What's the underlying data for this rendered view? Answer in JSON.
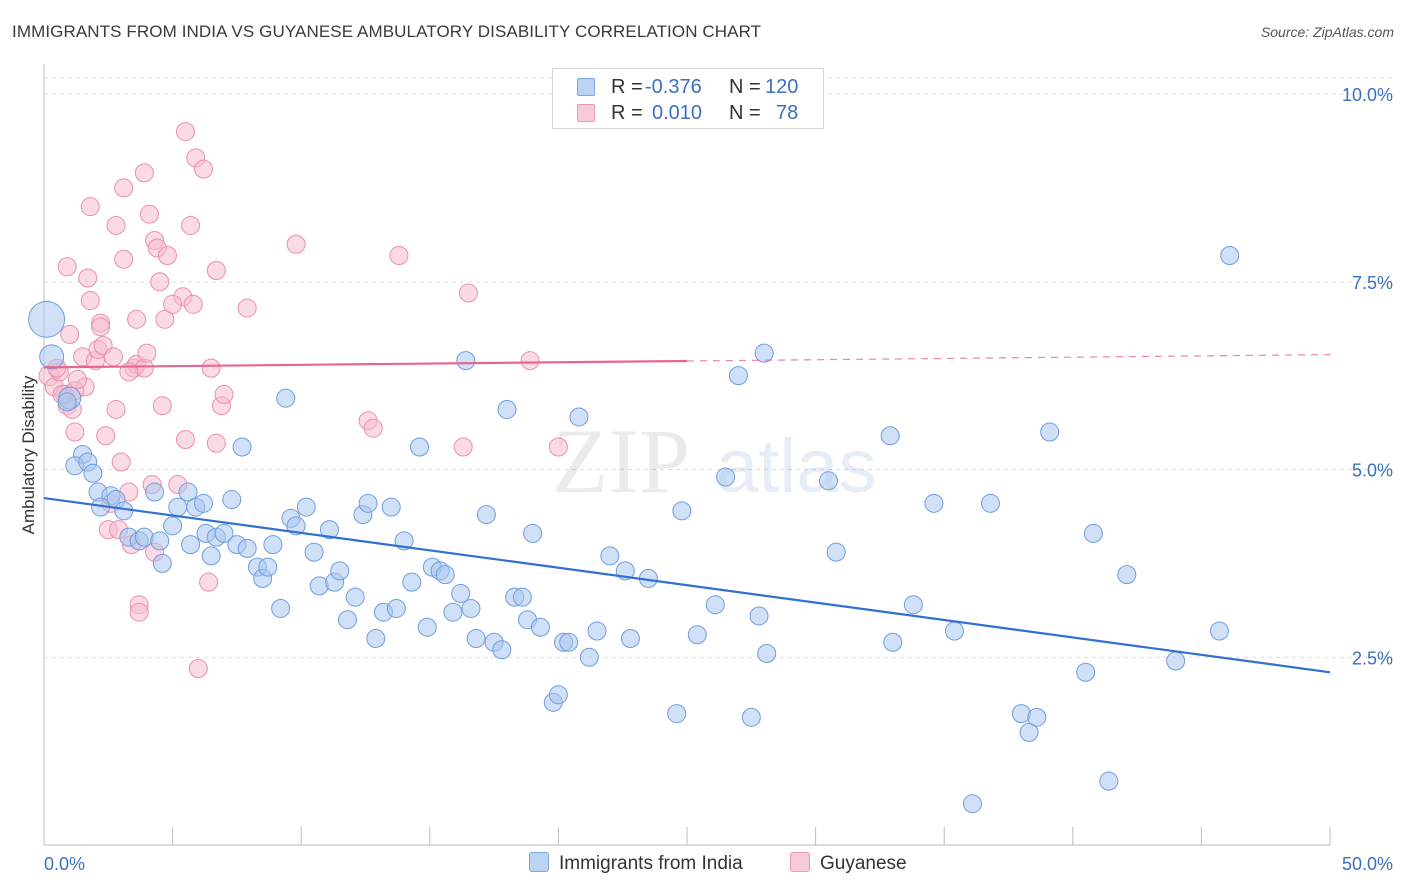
{
  "header": {
    "title": "IMMIGRANTS FROM INDIA VS GUYANESE AMBULATORY DISABILITY CORRELATION CHART",
    "source": "Source: ZipAtlas.com"
  },
  "legend": {
    "rows": [
      {
        "r_label": "R =",
        "r_value": "-0.376",
        "n_label": "N =",
        "n_value": "120"
      },
      {
        "r_label": "R =",
        "r_value": "0.010",
        "n_label": "N =",
        "n_value": "78"
      }
    ]
  },
  "bottom_legend": {
    "items": [
      {
        "label": "Immigrants from India"
      },
      {
        "label": "Guyanese"
      }
    ]
  },
  "watermark": {
    "zip": "ZIP",
    "atlas": "atlas"
  },
  "colors": {
    "blue_fill": "#a9c6ef",
    "blue_stroke": "#6f9ddf",
    "blue_line": "#3270d0",
    "pink_fill": "#f5bcd0",
    "pink_stroke": "#ea8fb0",
    "pink_line": "#e7688e",
    "axis_text": "#3b6fc0",
    "grid": "#dcdcdc"
  },
  "chart_data": {
    "type": "scatter",
    "ylabel": "Ambulatory Disability",
    "xlabel": "",
    "xlim": [
      0,
      50
    ],
    "ylim": [
      0,
      10.4
    ],
    "x_tick_labels": [
      "0.0%",
      "50.0%"
    ],
    "y_ticks": [
      2.5,
      5.0,
      7.5,
      10.0
    ],
    "y_tick_labels": [
      "2.5%",
      "5.0%",
      "7.5%",
      "10.0%"
    ],
    "grid": "horizontal dashed",
    "series": [
      {
        "name": "Immigrants from India",
        "trend": {
          "x0": 0,
          "y0": 4.62,
          "x1": 50,
          "y1": 2.3,
          "solid_until": 50
        },
        "points": [
          [
            0.1,
            7.0,
            18
          ],
          [
            0.3,
            6.5,
            12
          ],
          [
            1.0,
            5.95,
            11
          ],
          [
            0.9,
            5.9,
            9
          ],
          [
            1.5,
            5.2,
            9
          ],
          [
            1.2,
            5.05,
            9
          ],
          [
            1.7,
            5.1,
            9
          ],
          [
            1.9,
            4.95,
            9
          ],
          [
            2.1,
            4.7,
            9
          ],
          [
            2.6,
            4.65,
            9
          ],
          [
            2.8,
            4.6,
            9
          ],
          [
            2.2,
            4.5,
            9
          ],
          [
            3.1,
            4.45,
            9
          ],
          [
            3.3,
            4.1,
            9
          ],
          [
            3.7,
            4.05,
            9
          ],
          [
            3.9,
            4.1,
            9
          ],
          [
            4.3,
            4.7,
            9
          ],
          [
            4.5,
            4.05,
            9
          ],
          [
            4.6,
            3.75,
            9
          ],
          [
            5.0,
            4.25,
            9
          ],
          [
            5.2,
            4.5,
            9
          ],
          [
            5.6,
            4.7,
            9
          ],
          [
            5.7,
            4.0,
            9
          ],
          [
            5.9,
            4.5,
            9
          ],
          [
            6.2,
            4.55,
            9
          ],
          [
            6.3,
            4.15,
            9
          ],
          [
            6.5,
            3.85,
            9
          ],
          [
            6.7,
            4.1,
            9
          ],
          [
            7.0,
            4.15,
            9
          ],
          [
            7.3,
            4.6,
            9
          ],
          [
            7.5,
            4.0,
            9
          ],
          [
            7.7,
            5.3,
            9
          ],
          [
            7.9,
            3.95,
            9
          ],
          [
            8.3,
            3.7,
            9
          ],
          [
            8.5,
            3.55,
            9
          ],
          [
            8.7,
            3.7,
            9
          ],
          [
            8.9,
            4.0,
            9
          ],
          [
            9.2,
            3.15,
            9
          ],
          [
            9.4,
            5.95,
            9
          ],
          [
            9.6,
            4.35,
            9
          ],
          [
            9.8,
            4.25,
            9
          ],
          [
            10.2,
            4.5,
            9
          ],
          [
            10.5,
            3.9,
            9
          ],
          [
            10.7,
            3.45,
            9
          ],
          [
            11.1,
            4.2,
            9
          ],
          [
            11.3,
            3.5,
            9
          ],
          [
            11.5,
            3.65,
            9
          ],
          [
            11.8,
            3.0,
            9
          ],
          [
            12.1,
            3.3,
            9
          ],
          [
            12.4,
            4.4,
            9
          ],
          [
            12.6,
            4.55,
            9
          ],
          [
            12.9,
            2.75,
            9
          ],
          [
            13.2,
            3.1,
            9
          ],
          [
            13.5,
            4.5,
            9
          ],
          [
            13.7,
            3.15,
            9
          ],
          [
            14.0,
            4.05,
            9
          ],
          [
            14.3,
            3.5,
            9
          ],
          [
            14.6,
            5.3,
            9
          ],
          [
            14.9,
            2.9,
            9
          ],
          [
            15.1,
            3.7,
            9
          ],
          [
            15.4,
            3.65,
            9
          ],
          [
            15.6,
            3.6,
            9
          ],
          [
            15.9,
            3.1,
            9
          ],
          [
            16.2,
            3.35,
            9
          ],
          [
            16.4,
            6.45,
            9
          ],
          [
            16.6,
            3.15,
            9
          ],
          [
            16.8,
            2.75,
            9
          ],
          [
            17.2,
            4.4,
            9
          ],
          [
            17.5,
            2.7,
            9
          ],
          [
            17.8,
            2.6,
            9
          ],
          [
            18.0,
            5.8,
            9
          ],
          [
            18.3,
            3.3,
            9
          ],
          [
            18.6,
            3.3,
            9
          ],
          [
            18.8,
            3.0,
            9
          ],
          [
            19.0,
            4.15,
            9
          ],
          [
            19.3,
            2.9,
            9
          ],
          [
            19.8,
            1.9,
            9
          ],
          [
            20.0,
            2.0,
            9
          ],
          [
            20.2,
            2.7,
            9
          ],
          [
            20.4,
            2.7,
            9
          ],
          [
            20.8,
            5.7,
            9
          ],
          [
            21.2,
            2.5,
            9
          ],
          [
            21.5,
            2.85,
            9
          ],
          [
            22.0,
            3.85,
            9
          ],
          [
            22.6,
            3.65,
            9
          ],
          [
            22.8,
            2.75,
            9
          ],
          [
            23.5,
            3.55,
            9
          ],
          [
            24.6,
            1.75,
            9
          ],
          [
            24.8,
            4.45,
            9
          ],
          [
            25.4,
            2.8,
            9
          ],
          [
            26.1,
            3.2,
            9
          ],
          [
            26.5,
            4.9,
            9
          ],
          [
            27.0,
            6.25,
            9
          ],
          [
            27.5,
            1.7,
            9
          ],
          [
            27.8,
            3.05,
            9
          ],
          [
            28.0,
            6.55,
            9
          ],
          [
            28.1,
            2.55,
            9
          ],
          [
            30.5,
            4.85,
            9
          ],
          [
            30.8,
            3.9,
            9
          ],
          [
            33.0,
            2.7,
            9
          ],
          [
            32.9,
            5.45,
            9
          ],
          [
            33.8,
            3.2,
            9
          ],
          [
            34.6,
            4.55,
            9
          ],
          [
            35.4,
            2.85,
            9
          ],
          [
            36.8,
            4.55,
            9
          ],
          [
            36.1,
            0.55,
            9
          ],
          [
            38.0,
            1.75,
            9
          ],
          [
            38.3,
            1.5,
            9
          ],
          [
            38.6,
            1.7,
            9
          ],
          [
            39.1,
            5.5,
            9
          ],
          [
            40.5,
            2.3,
            9
          ],
          [
            40.8,
            4.15,
            9
          ],
          [
            42.1,
            3.6,
            9
          ],
          [
            41.4,
            0.85,
            9
          ],
          [
            45.7,
            2.85,
            9
          ],
          [
            46.1,
            7.85,
            9
          ],
          [
            44.0,
            2.45,
            9
          ]
        ]
      },
      {
        "name": "Guyanese",
        "trend": {
          "x0": 0,
          "y0": 6.36,
          "x1": 50,
          "y1": 6.53,
          "solid_until": 25
        },
        "points": [
          [
            0.2,
            6.25,
            10
          ],
          [
            0.4,
            6.1,
            9
          ],
          [
            0.6,
            6.3,
            9
          ],
          [
            0.8,
            6.0,
            9
          ],
          [
            0.9,
            5.85,
            9
          ],
          [
            1.0,
            6.8,
            9
          ],
          [
            1.1,
            5.8,
            9
          ],
          [
            1.2,
            5.5,
            9
          ],
          [
            0.9,
            7.7,
            9
          ],
          [
            1.5,
            6.5,
            9
          ],
          [
            1.6,
            6.1,
            9
          ],
          [
            1.7,
            7.55,
            9
          ],
          [
            1.8,
            7.25,
            9
          ],
          [
            1.8,
            8.5,
            9
          ],
          [
            2.0,
            6.45,
            9
          ],
          [
            2.1,
            6.6,
            9
          ],
          [
            2.2,
            6.95,
            9
          ],
          [
            2.3,
            6.65,
            9
          ],
          [
            2.4,
            5.45,
            9
          ],
          [
            2.5,
            4.2,
            9
          ],
          [
            2.6,
            4.55,
            9
          ],
          [
            2.8,
            5.8,
            9
          ],
          [
            2.8,
            8.25,
            9
          ],
          [
            2.9,
            4.2,
            9
          ],
          [
            3.0,
            5.1,
            9
          ],
          [
            3.1,
            7.8,
            9
          ],
          [
            3.1,
            8.75,
            9
          ],
          [
            3.3,
            4.7,
            9
          ],
          [
            3.4,
            4.0,
            9
          ],
          [
            3.5,
            6.35,
            9
          ],
          [
            3.6,
            6.4,
            9
          ],
          [
            3.6,
            7.0,
            9
          ],
          [
            3.7,
            3.2,
            9
          ],
          [
            3.7,
            3.1,
            9
          ],
          [
            3.9,
            6.35,
            9
          ],
          [
            3.9,
            8.95,
            9
          ],
          [
            4.0,
            6.55,
            9
          ],
          [
            4.1,
            8.4,
            9
          ],
          [
            4.2,
            4.8,
            9
          ],
          [
            4.3,
            3.9,
            9
          ],
          [
            4.3,
            8.05,
            9
          ],
          [
            4.4,
            7.95,
            9
          ],
          [
            4.5,
            7.5,
            9
          ],
          [
            4.6,
            5.85,
            9
          ],
          [
            4.7,
            7.0,
            9
          ],
          [
            4.8,
            7.85,
            9
          ],
          [
            5.2,
            4.8,
            9
          ],
          [
            5.4,
            7.3,
            9
          ],
          [
            5.5,
            5.4,
            9
          ],
          [
            5.5,
            9.5,
            9
          ],
          [
            5.7,
            8.25,
            9
          ],
          [
            5.8,
            7.2,
            9
          ],
          [
            5.9,
            9.15,
            9
          ],
          [
            6.0,
            2.35,
            9
          ],
          [
            6.2,
            9.0,
            9
          ],
          [
            6.4,
            3.5,
            9
          ],
          [
            6.5,
            6.35,
            9
          ],
          [
            6.7,
            7.65,
            9
          ],
          [
            6.7,
            5.35,
            9
          ],
          [
            6.9,
            5.85,
            9
          ],
          [
            7.0,
            6.0,
            9
          ],
          [
            7.9,
            7.15,
            9
          ],
          [
            9.8,
            8.0,
            9
          ],
          [
            12.6,
            5.65,
            9
          ],
          [
            12.8,
            5.55,
            9
          ],
          [
            13.8,
            7.85,
            9
          ],
          [
            16.3,
            5.3,
            9
          ],
          [
            16.5,
            7.35,
            9
          ],
          [
            18.9,
            6.45,
            9
          ],
          [
            20.0,
            5.3,
            9
          ],
          [
            1.2,
            6.05,
            9
          ],
          [
            0.7,
            6.0,
            9
          ],
          [
            2.2,
            6.9,
            9
          ],
          [
            5.0,
            7.2,
            9
          ],
          [
            1.3,
            6.2,
            9
          ],
          [
            0.5,
            6.35,
            9
          ],
          [
            2.7,
            6.5,
            9
          ],
          [
            3.3,
            6.3,
            9
          ]
        ]
      }
    ]
  }
}
